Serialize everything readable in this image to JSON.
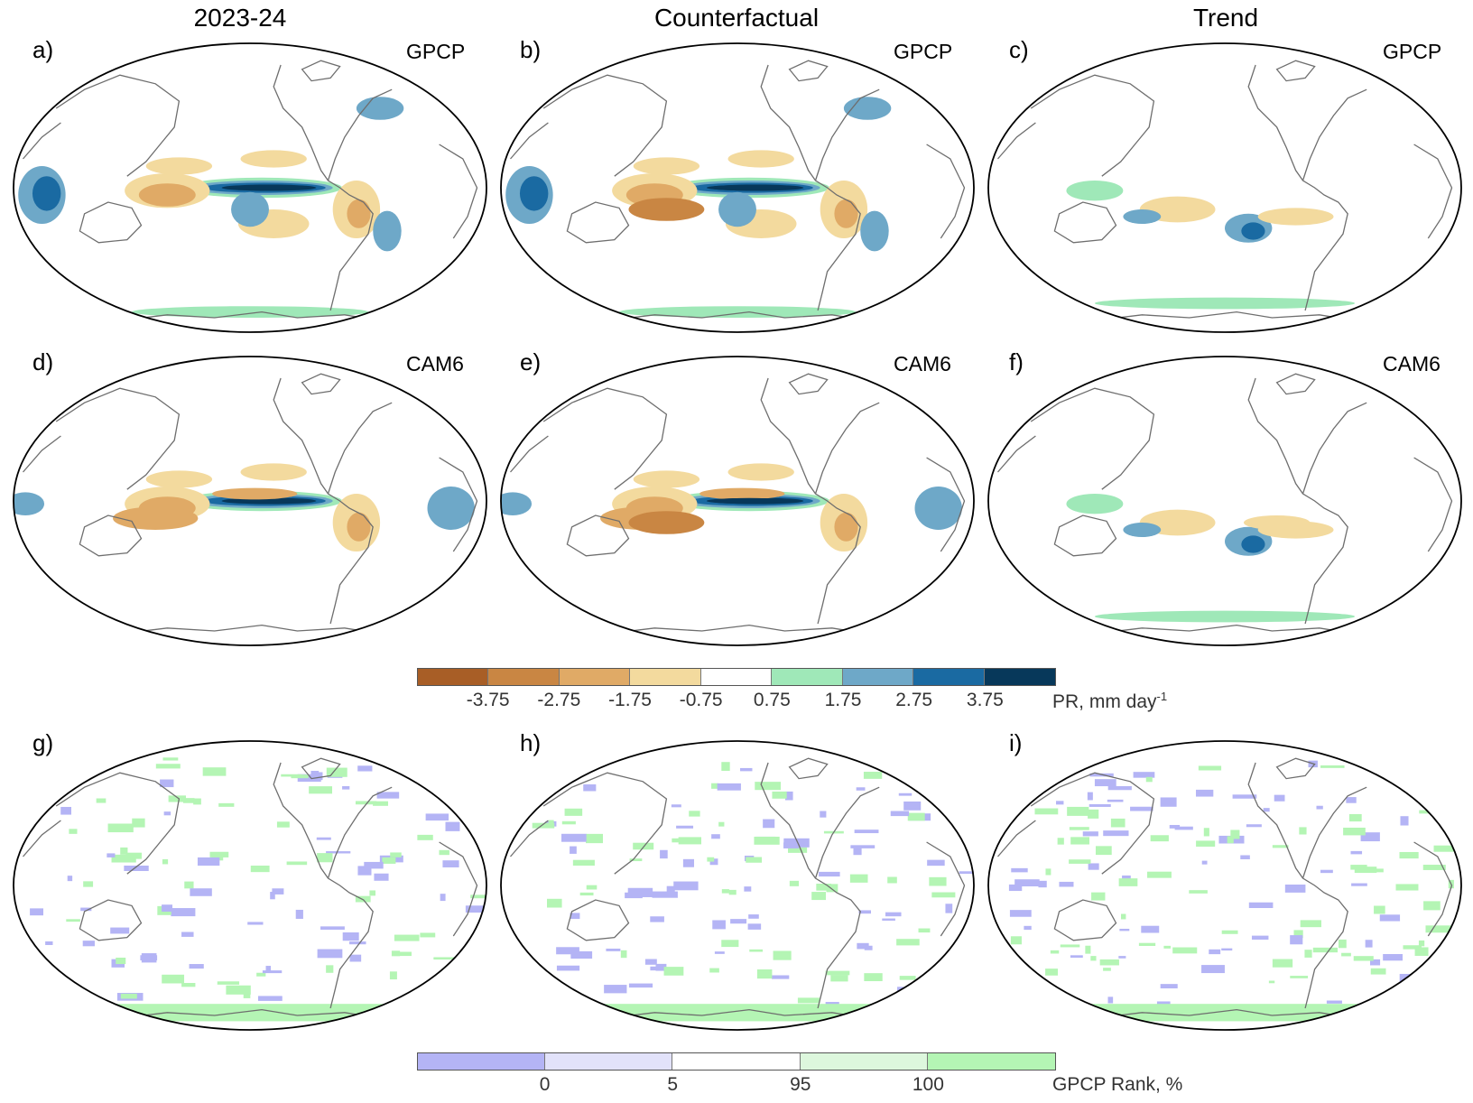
{
  "column_titles": [
    "2023-24",
    "Counterfactual",
    "Trend"
  ],
  "panels": [
    {
      "letter": "a)",
      "dataset": "GPCP",
      "style": "pr_obs"
    },
    {
      "letter": "b)",
      "dataset": "GPCP",
      "style": "pr_obs_strong"
    },
    {
      "letter": "c)",
      "dataset": "GPCP",
      "style": "pr_trend"
    },
    {
      "letter": "d)",
      "dataset": "CAM6",
      "style": "pr_model"
    },
    {
      "letter": "e)",
      "dataset": "CAM6",
      "style": "pr_model_strong"
    },
    {
      "letter": "f)",
      "dataset": "CAM6",
      "style": "pr_model_trend"
    },
    {
      "letter": "g)",
      "dataset": "",
      "style": "rank"
    },
    {
      "letter": "h)",
      "dataset": "",
      "style": "rank"
    },
    {
      "letter": "i)",
      "dataset": "",
      "style": "rank_trend"
    }
  ],
  "pr_colorbar": {
    "colors": [
      "#a85e26",
      "#c98643",
      "#e0aa66",
      "#f3da9e",
      "#ffffff",
      "#9fe8b8",
      "#6ea8c8",
      "#1a6aa2",
      "#07385a"
    ],
    "ticks": [
      "-3.75",
      "-2.75",
      "-1.75",
      "-0.75",
      "0.75",
      "1.75",
      "2.75",
      "3.75"
    ],
    "label": "PR, mm day",
    "label_superscript": "-1"
  },
  "rank_colorbar": {
    "colors": [
      "#b4b4f5",
      "#e2e2fa",
      "#ffffff",
      "#ddf7dd",
      "#b4f5b4"
    ],
    "ticks": [
      "0",
      "5",
      "95",
      "100"
    ],
    "label": "GPCP Rank, %"
  }
}
